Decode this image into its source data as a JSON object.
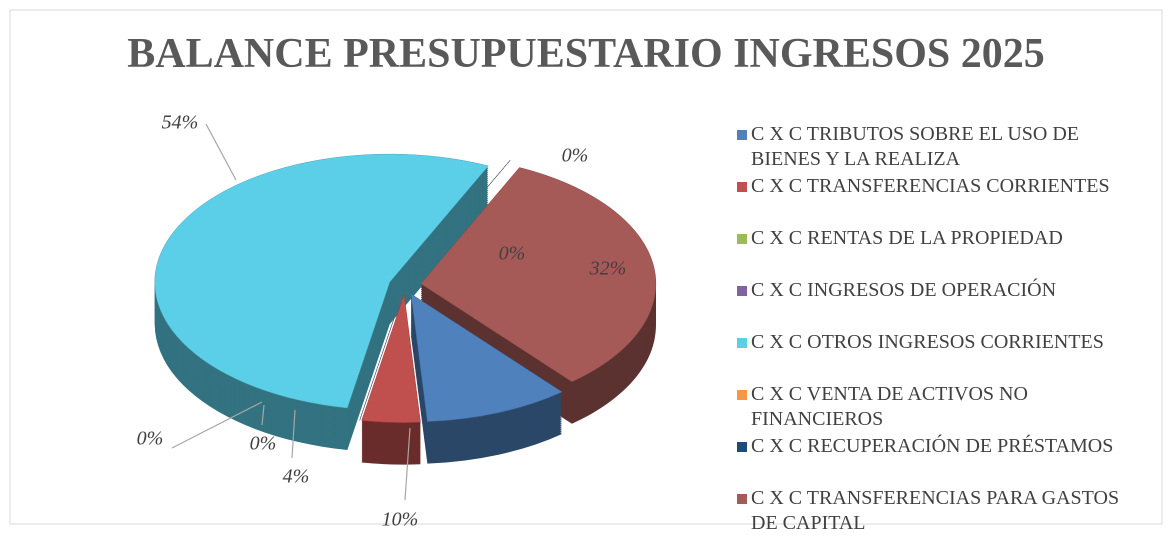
{
  "chart_data": {
    "type": "pie",
    "title": "BALANCE PRESUPUESTARIO INGRESOS 2025",
    "categories": [
      "C X C TRIBUTOS SOBRE EL USO DE BIENES Y LA REALIZA",
      "C X C TRANSFERENCIAS CORRIENTES",
      "C X C RENTAS DE LA PROPIEDAD",
      "C X C INGRESOS DE OPERACIÓN",
      "C X C OTROS INGRESOS CORRIENTES",
      "C X C VENTA DE ACTIVOS NO FINANCIEROS",
      "C X C RECUPERACIÓN DE PRÉSTAMOS",
      "C X C TRANSFERENCIAS PARA GASTOS DE CAPITAL"
    ],
    "values": [
      10,
      4,
      0,
      0,
      54,
      0,
      0,
      32
    ],
    "value_labels": [
      "10%",
      "4%",
      "0%",
      "0%",
      "54%",
      "0%",
      "0%",
      "32%"
    ],
    "colors": [
      "#4f81bd",
      "#c0504d",
      "#9bbb59",
      "#8064a2",
      "#5ccfe8",
      "#f79646",
      "#1f497d",
      "#a65a58"
    ],
    "legend": "right"
  }
}
